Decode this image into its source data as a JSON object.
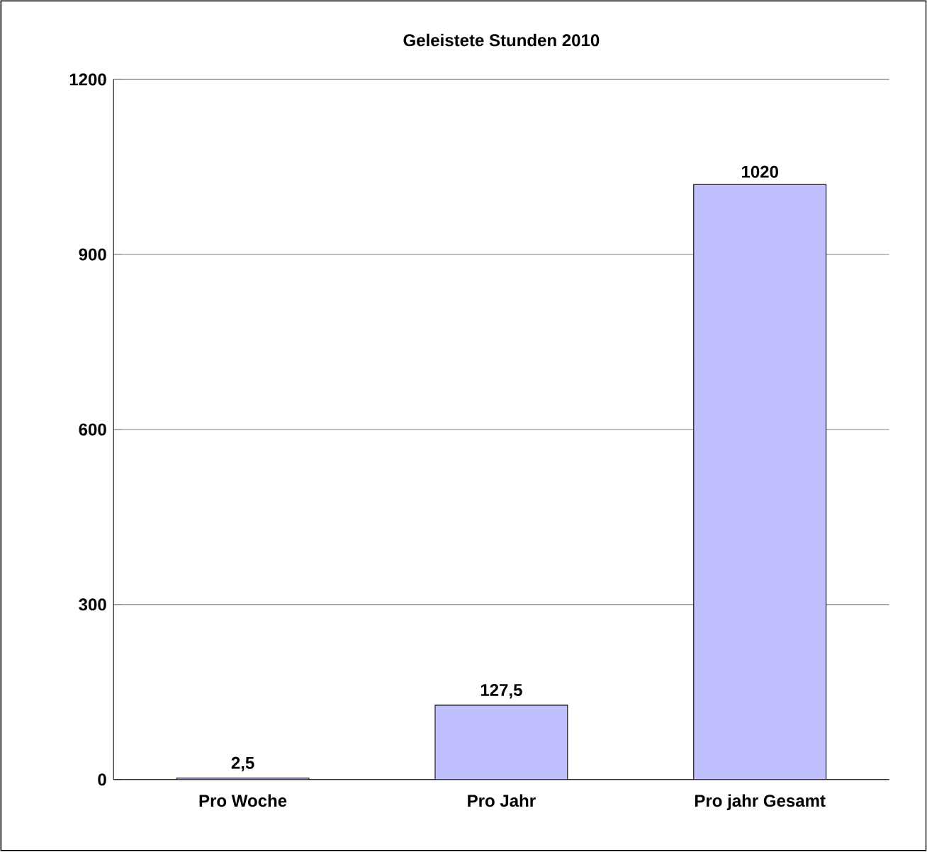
{
  "chart_data": {
    "type": "bar",
    "title": "Geleistete Stunden 2010",
    "categories": [
      "Pro Woche",
      "Pro Jahr",
      "Pro jahr Gesamt"
    ],
    "values": [
      2.5,
      127.5,
      1020
    ],
    "value_labels": [
      "2,5",
      "127,5",
      "1020"
    ],
    "color": "#c0c0ff",
    "ylim": [
      0,
      1200
    ],
    "yticks": [
      0,
      300,
      600,
      900,
      1200
    ],
    "grid": "y"
  }
}
